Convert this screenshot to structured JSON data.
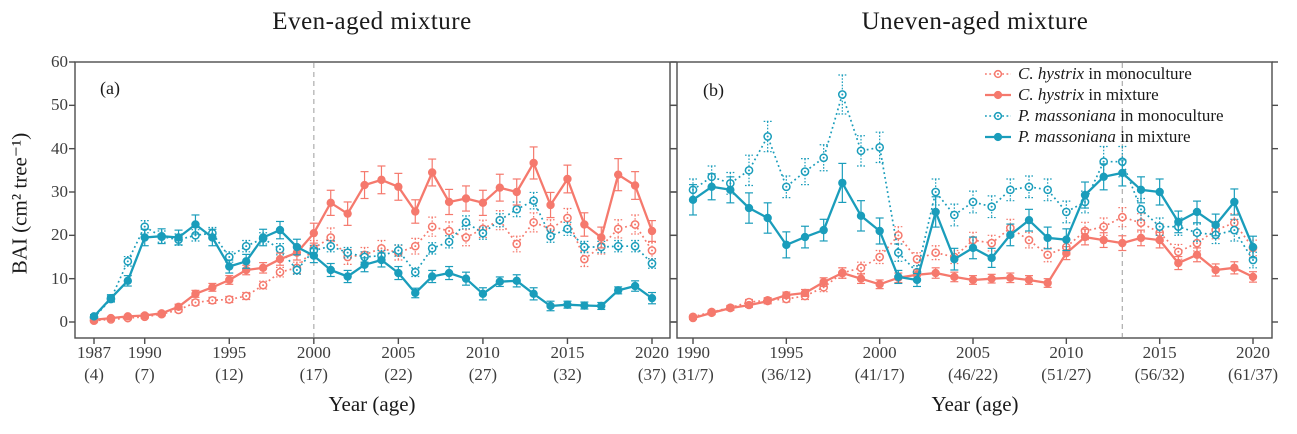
{
  "figure": {
    "ylabel": "BAI (cm² tree⁻¹)",
    "background": "#ffffff"
  },
  "colors": {
    "c_hystrix": "#f5796d",
    "p_massoniana": "#1a9dbb",
    "reference_line": "#b3b3b3",
    "axis": "#4d4d4d",
    "text": "#1a1a1a"
  },
  "legend": {
    "items": [
      {
        "species": "C. hystrix",
        "suffix": " in monoculture",
        "species_key": "c_hystrix",
        "marker": "open",
        "line": "dotted"
      },
      {
        "species": "C. hystrix",
        "suffix": " in mixture",
        "species_key": "c_hystrix",
        "marker": "filled",
        "line": "solid"
      },
      {
        "species": "P. massoniana",
        "suffix": " in monoculture",
        "species_key": "p_massoniana",
        "marker": "open",
        "line": "dotted"
      },
      {
        "species": "P. massoniana",
        "suffix": " in mixture",
        "species_key": "p_massoniana",
        "marker": "filled",
        "line": "solid"
      }
    ]
  },
  "chart_data": [
    {
      "panel_label": "(a)",
      "title": "Even-aged mixture",
      "type": "line",
      "xlabel": "Year (age)",
      "ylim": [
        0,
        60
      ],
      "yticks": [
        0,
        10,
        20,
        30,
        40,
        50,
        60
      ],
      "show_ytick_labels": true,
      "reference_year": 2000,
      "x_ticks": [
        {
          "year": 1987,
          "age": "(4)"
        },
        {
          "year": 1990,
          "age": "(7)"
        },
        {
          "year": 1995,
          "age": "(12)"
        },
        {
          "year": 2000,
          "age": "(17)"
        },
        {
          "year": 2005,
          "age": "(22)"
        },
        {
          "year": 2010,
          "age": "(27)"
        },
        {
          "year": 2015,
          "age": "(32)"
        },
        {
          "year": 2020,
          "age": "(37)"
        }
      ],
      "years": [
        1987,
        1988,
        1989,
        1990,
        1991,
        1992,
        1993,
        1994,
        1995,
        1996,
        1997,
        1998,
        1999,
        2000,
        2001,
        2002,
        2003,
        2004,
        2005,
        2006,
        2007,
        2008,
        2009,
        2010,
        2011,
        2012,
        2013,
        2014,
        2015,
        2016,
        2017,
        2018,
        2019,
        2020
      ],
      "series": [
        {
          "key": "ch-mono",
          "label": "C. hystrix in monoculture",
          "species_key": "c_hystrix",
          "line": "dotted",
          "marker": "open",
          "values": [
            0.3,
            0.6,
            0.9,
            1.2,
            1.8,
            2.8,
            4.5,
            5.0,
            5.2,
            6.0,
            8.5,
            11.5,
            12.5,
            17.0,
            19.5,
            15.0,
            15.5,
            17.0,
            16.0,
            17.5,
            22.0,
            21.0,
            19.5,
            21.5,
            23.5,
            18.0,
            23.0,
            21.5,
            24.0,
            14.5,
            17.5,
            21.5,
            22.5,
            16.5
          ],
          "errors": [
            0.2,
            0.2,
            0.3,
            0.3,
            0.4,
            0.5,
            0.6,
            0.7,
            0.7,
            0.8,
            0.9,
            1.1,
            1.3,
            1.8,
            2.2,
            1.7,
            1.7,
            1.8,
            1.7,
            1.8,
            2.2,
            2.1,
            1.9,
            2.0,
            2.2,
            1.8,
            2.2,
            2.1,
            2.2,
            1.7,
            1.8,
            2.1,
            2.2,
            1.9
          ]
        },
        {
          "key": "ch-mix",
          "label": "C. hystrix in mixture",
          "species_key": "c_hystrix",
          "line": "solid",
          "marker": "filled",
          "values": [
            0.5,
            0.9,
            1.3,
            1.5,
            2.0,
            3.5,
            6.5,
            8.0,
            9.7,
            12.0,
            12.5,
            14.5,
            16.0,
            20.5,
            27.5,
            25.0,
            31.6,
            32.8,
            31.2,
            25.5,
            34.5,
            27.7,
            28.5,
            27.5,
            31.0,
            30.0,
            36.7,
            27.0,
            33.0,
            22.5,
            19.5,
            34.0,
            31.5,
            21.0
          ],
          "errors": [
            0.2,
            0.3,
            0.3,
            0.4,
            0.4,
            0.6,
            0.8,
            0.9,
            1.0,
            1.1,
            1.2,
            1.4,
            1.7,
            2.3,
            2.9,
            2.7,
            3.1,
            3.2,
            3.1,
            2.7,
            3.1,
            2.9,
            2.9,
            2.9,
            3.1,
            3.0,
            3.7,
            2.9,
            3.2,
            2.7,
            2.4,
            3.7,
            3.2,
            2.4
          ]
        },
        {
          "key": "pm-mono",
          "label": "P. massoniana in monoculture",
          "species_key": "p_massoniana",
          "line": "dotted",
          "marker": "open",
          "values": [
            1.0,
            5.3,
            14.0,
            22.0,
            19.7,
            19.0,
            20.0,
            20.5,
            15.0,
            17.5,
            19.3,
            16.8,
            12.0,
            16.5,
            17.5,
            16.0,
            15.0,
            15.3,
            16.5,
            11.5,
            17.0,
            18.5,
            23.0,
            20.5,
            23.5,
            26.0,
            28.0,
            19.8,
            21.5,
            17.3,
            17.3,
            17.5,
            17.5,
            13.5
          ],
          "errors": [
            0.3,
            0.7,
            1.1,
            1.4,
            1.3,
            1.3,
            1.3,
            1.3,
            1.2,
            1.3,
            1.3,
            1.3,
            1.0,
            1.2,
            1.3,
            1.2,
            1.2,
            1.2,
            1.3,
            1.0,
            1.3,
            1.4,
            1.5,
            1.4,
            1.5,
            1.7,
            1.9,
            1.4,
            1.5,
            1.3,
            1.3,
            1.3,
            1.3,
            1.1
          ]
        },
        {
          "key": "pm-mix",
          "label": "P. massoniana in mixture",
          "species_key": "p_massoniana",
          "line": "solid",
          "marker": "filled",
          "values": [
            1.3,
            5.5,
            9.5,
            19.5,
            19.8,
            19.5,
            22.5,
            19.5,
            12.8,
            14.0,
            19.5,
            21.2,
            17.3,
            15.3,
            12.0,
            10.5,
            13.2,
            14.3,
            11.3,
            6.7,
            10.5,
            11.3,
            10.0,
            6.5,
            9.3,
            9.5,
            6.5,
            3.7,
            4.0,
            3.8,
            3.7,
            7.3,
            8.3,
            5.5
          ],
          "errors": [
            0.4,
            0.8,
            1.2,
            1.9,
            1.7,
            1.7,
            2.2,
            1.9,
            1.5,
            1.6,
            1.9,
            2.0,
            1.8,
            1.6,
            1.5,
            1.4,
            1.6,
            1.6,
            1.5,
            1.1,
            1.4,
            1.5,
            1.5,
            1.4,
            1.1,
            1.4,
            1.4,
            1.1,
            0.8,
            0.8,
            0.8,
            0.8,
            1.2,
            1.3
          ]
        }
      ]
    },
    {
      "panel_label": "(b)",
      "title": "Uneven-aged mixture",
      "type": "line",
      "xlabel": "Year (age)",
      "ylim": [
        0,
        60
      ],
      "yticks": [
        0,
        10,
        20,
        30,
        40,
        50,
        60
      ],
      "show_ytick_labels": false,
      "reference_year": 2013,
      "x_ticks": [
        {
          "year": 1990,
          "age": "(31/7)"
        },
        {
          "year": 1995,
          "age": "(36/12)"
        },
        {
          "year": 2000,
          "age": "(41/17)"
        },
        {
          "year": 2005,
          "age": "(46/22)"
        },
        {
          "year": 2010,
          "age": "(51/27)"
        },
        {
          "year": 2015,
          "age": "(56/32)"
        },
        {
          "year": 2020,
          "age": "(61/37)"
        }
      ],
      "years": [
        1990,
        1991,
        1992,
        1993,
        1994,
        1995,
        1996,
        1997,
        1998,
        1999,
        2000,
        2001,
        2002,
        2003,
        2004,
        2005,
        2006,
        2007,
        2008,
        2009,
        2010,
        2011,
        2012,
        2013,
        2014,
        2015,
        2016,
        2017,
        2018,
        2019,
        2020
      ],
      "series": [
        {
          "key": "ch-mono",
          "label": "C. hystrix in monoculture",
          "species_key": "c_hystrix",
          "line": "dotted",
          "marker": "open",
          "values": [
            1.2,
            2.3,
            3.3,
            4.6,
            5.0,
            5.3,
            6.0,
            8.0,
            11.3,
            12.5,
            15.0,
            20.0,
            14.5,
            16.0,
            15.0,
            18.9,
            18.2,
            21.7,
            18.9,
            15.5,
            17.3,
            21.0,
            22.0,
            24.2,
            22.9,
            20.6,
            16.2,
            18.2,
            21.2,
            22.9,
            17.1
          ],
          "errors": [
            0.3,
            0.4,
            0.5,
            0.6,
            0.6,
            0.7,
            0.8,
            1.0,
            1.2,
            1.3,
            1.5,
            2.0,
            1.5,
            1.6,
            1.5,
            1.8,
            1.8,
            2.0,
            1.8,
            1.6,
            1.8,
            2.0,
            2.0,
            2.2,
            2.1,
            2.0,
            1.7,
            1.8,
            2.0,
            2.1,
            1.8
          ]
        },
        {
          "key": "ch-mix",
          "label": "C. hystrix in mixture",
          "species_key": "c_hystrix",
          "line": "solid",
          "marker": "filled",
          "values": [
            0.9,
            2.1,
            3.2,
            3.9,
            4.8,
            6.2,
            6.7,
            9.2,
            11.3,
            10.0,
            8.7,
            10.2,
            10.9,
            11.3,
            10.4,
            9.7,
            10.0,
            10.2,
            9.7,
            9.0,
            15.9,
            19.6,
            18.9,
            18.2,
            19.4,
            18.9,
            13.6,
            15.5,
            12.0,
            12.5,
            10.4
          ],
          "errors": [
            0.3,
            0.4,
            0.5,
            0.5,
            0.6,
            0.7,
            0.8,
            1.0,
            1.2,
            1.1,
            1.0,
            1.1,
            1.1,
            1.2,
            1.1,
            1.0,
            1.0,
            1.1,
            1.0,
            1.0,
            1.5,
            1.8,
            1.7,
            1.7,
            1.8,
            1.8,
            1.5,
            1.6,
            1.4,
            1.4,
            1.2
          ]
        },
        {
          "key": "pm-mono",
          "label": "P. massoniana in monoculture",
          "species_key": "p_massoniana",
          "line": "dotted",
          "marker": "open",
          "values": [
            30.5,
            33.5,
            32.0,
            35.0,
            42.8,
            31.2,
            34.7,
            37.9,
            52.5,
            39.5,
            40.3,
            16.0,
            11.5,
            30.0,
            24.7,
            27.7,
            26.6,
            30.5,
            31.2,
            30.5,
            25.4,
            27.7,
            37.0,
            37.0,
            26.0,
            22.0,
            22.0,
            20.6,
            20.1,
            21.2,
            14.3
          ],
          "errors": [
            2.5,
            2.5,
            2.5,
            3.5,
            3.5,
            2.5,
            3.0,
            3.0,
            4.5,
            3.5,
            3.5,
            2.0,
            1.5,
            3.0,
            2.5,
            2.5,
            2.5,
            2.5,
            2.5,
            2.5,
            2.5,
            2.5,
            3.5,
            3.5,
            2.5,
            2.0,
            2.0,
            2.0,
            2.0,
            2.5,
            1.8
          ]
        },
        {
          "key": "pm-mix",
          "label": "P. massoniana in mixture",
          "species_key": "p_massoniana",
          "line": "solid",
          "marker": "filled",
          "values": [
            28.2,
            31.2,
            30.5,
            26.3,
            24.0,
            17.8,
            19.6,
            21.2,
            32.1,
            24.5,
            21.0,
            10.4,
            9.7,
            25.4,
            14.5,
            17.1,
            14.8,
            20.1,
            23.5,
            19.4,
            19.0,
            29.3,
            33.5,
            34.4,
            30.5,
            30.0,
            23.1,
            25.4,
            22.4,
            27.7,
            17.3
          ],
          "errors": [
            3.5,
            3.0,
            3.0,
            3.5,
            3.5,
            3.0,
            2.5,
            2.5,
            4.5,
            3.5,
            3.0,
            1.5,
            1.5,
            3.5,
            2.5,
            2.5,
            2.2,
            2.5,
            2.5,
            2.5,
            2.5,
            3.0,
            3.0,
            3.0,
            3.0,
            3.0,
            2.5,
            2.5,
            2.5,
            3.0,
            2.5
          ]
        }
      ]
    }
  ]
}
